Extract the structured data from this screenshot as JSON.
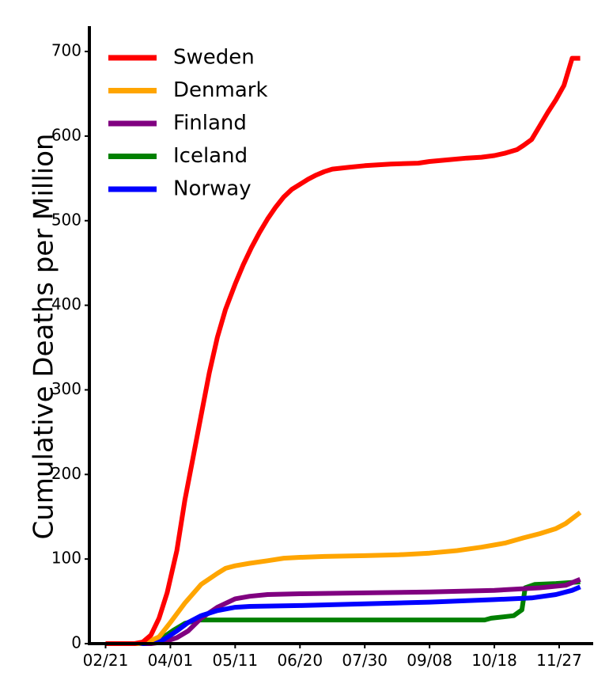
{
  "chart_data": {
    "type": "line",
    "title": "",
    "xlabel": "",
    "ylabel": "Cumulative Deaths per Million",
    "x_ticks": [
      "02/21",
      "04/01",
      "05/11",
      "06/20",
      "07/30",
      "09/08",
      "10/18",
      "11/27"
    ],
    "y_ticks": [
      0,
      100,
      200,
      300,
      400,
      500,
      600,
      700
    ],
    "xlim": [
      "2020-02-11",
      "2020-12-18"
    ],
    "ylim": [
      0,
      730
    ],
    "grid": false,
    "legend_position": "top-left",
    "series": [
      {
        "name": "Sweden",
        "color": "#ff0000",
        "points": [
          [
            "2020-02-21",
            0
          ],
          [
            "2020-03-10",
            0
          ],
          [
            "2020-03-15",
            2
          ],
          [
            "2020-03-20",
            10
          ],
          [
            "2020-03-25",
            30
          ],
          [
            "2020-03-30",
            60
          ],
          [
            "2020-04-05",
            110
          ],
          [
            "2020-04-10",
            170
          ],
          [
            "2020-04-15",
            220
          ],
          [
            "2020-04-20",
            270
          ],
          [
            "2020-04-25",
            320
          ],
          [
            "2020-04-30",
            362
          ],
          [
            "2020-05-05",
            395
          ],
          [
            "2020-05-11",
            425
          ],
          [
            "2020-05-16",
            448
          ],
          [
            "2020-05-21",
            468
          ],
          [
            "2020-05-26",
            486
          ],
          [
            "2020-05-31",
            502
          ],
          [
            "2020-06-05",
            516
          ],
          [
            "2020-06-10",
            528
          ],
          [
            "2020-06-15",
            537
          ],
          [
            "2020-06-20",
            543
          ],
          [
            "2020-06-25",
            549
          ],
          [
            "2020-06-30",
            554
          ],
          [
            "2020-07-05",
            558
          ],
          [
            "2020-07-10",
            561
          ],
          [
            "2020-07-20",
            563
          ],
          [
            "2020-07-30",
            565
          ],
          [
            "2020-08-15",
            567
          ],
          [
            "2020-09-01",
            568
          ],
          [
            "2020-09-08",
            570
          ],
          [
            "2020-09-20",
            572
          ],
          [
            "2020-10-01",
            574
          ],
          [
            "2020-10-10",
            575
          ],
          [
            "2020-10-18",
            577
          ],
          [
            "2020-10-25",
            580
          ],
          [
            "2020-11-01",
            584
          ],
          [
            "2020-11-05",
            589
          ],
          [
            "2020-11-10",
            596
          ],
          [
            "2020-11-15",
            612
          ],
          [
            "2020-11-20",
            628
          ],
          [
            "2020-11-25",
            643
          ],
          [
            "2020-11-30",
            660
          ],
          [
            "2020-12-05",
            692
          ],
          [
            "2020-12-10",
            692
          ]
        ]
      },
      {
        "name": "Denmark",
        "color": "#ffa500",
        "points": [
          [
            "2020-02-21",
            0
          ],
          [
            "2020-03-12",
            0
          ],
          [
            "2020-03-18",
            2
          ],
          [
            "2020-03-25",
            8
          ],
          [
            "2020-04-01",
            25
          ],
          [
            "2020-04-10",
            48
          ],
          [
            "2020-04-20",
            70
          ],
          [
            "2020-04-30",
            83
          ],
          [
            "2020-05-05",
            89
          ],
          [
            "2020-05-11",
            92
          ],
          [
            "2020-05-20",
            95
          ],
          [
            "2020-05-31",
            98
          ],
          [
            "2020-06-10",
            101
          ],
          [
            "2020-06-20",
            102
          ],
          [
            "2020-07-05",
            103
          ],
          [
            "2020-07-30",
            104
          ],
          [
            "2020-08-20",
            105
          ],
          [
            "2020-09-08",
            107
          ],
          [
            "2020-09-25",
            110
          ],
          [
            "2020-10-10",
            114
          ],
          [
            "2020-10-25",
            119
          ],
          [
            "2020-11-05",
            125
          ],
          [
            "2020-11-15",
            130
          ],
          [
            "2020-11-25",
            136
          ],
          [
            "2020-12-01",
            142
          ],
          [
            "2020-12-10",
            155
          ]
        ]
      },
      {
        "name": "Finland",
        "color": "#800080",
        "points": [
          [
            "2020-02-21",
            0
          ],
          [
            "2020-03-20",
            0
          ],
          [
            "2020-03-28",
            2
          ],
          [
            "2020-04-05",
            7
          ],
          [
            "2020-04-12",
            15
          ],
          [
            "2020-04-20",
            30
          ],
          [
            "2020-04-30",
            43
          ],
          [
            "2020-05-11",
            53
          ],
          [
            "2020-05-20",
            56
          ],
          [
            "2020-05-31",
            58
          ],
          [
            "2020-06-20",
            59
          ],
          [
            "2020-07-30",
            60
          ],
          [
            "2020-09-08",
            61
          ],
          [
            "2020-10-18",
            63
          ],
          [
            "2020-11-15",
            66
          ],
          [
            "2020-12-01",
            69
          ],
          [
            "2020-12-10",
            76
          ]
        ]
      },
      {
        "name": "Iceland",
        "color": "#008000",
        "points": [
          [
            "2020-02-21",
            0
          ],
          [
            "2020-03-18",
            0
          ],
          [
            "2020-03-22",
            3
          ],
          [
            "2020-03-28",
            8
          ],
          [
            "2020-04-03",
            16
          ],
          [
            "2020-04-10",
            24
          ],
          [
            "2020-04-18",
            28
          ],
          [
            "2020-04-25",
            28
          ],
          [
            "2020-06-20",
            28
          ],
          [
            "2020-09-08",
            28
          ],
          [
            "2020-10-12",
            28
          ],
          [
            "2020-10-16",
            30
          ],
          [
            "2020-10-30",
            33
          ],
          [
            "2020-11-04",
            40
          ],
          [
            "2020-11-06",
            66
          ],
          [
            "2020-11-12",
            70
          ],
          [
            "2020-11-25",
            71
          ],
          [
            "2020-12-10",
            73
          ]
        ]
      },
      {
        "name": "Norway",
        "color": "#0000ff",
        "points": [
          [
            "2020-02-21",
            0
          ],
          [
            "2020-03-15",
            0
          ],
          [
            "2020-03-22",
            2
          ],
          [
            "2020-03-28",
            5
          ],
          [
            "2020-04-05",
            15
          ],
          [
            "2020-04-12",
            25
          ],
          [
            "2020-04-20",
            33
          ],
          [
            "2020-04-30",
            39
          ],
          [
            "2020-05-11",
            43
          ],
          [
            "2020-05-20",
            44
          ],
          [
            "2020-06-20",
            45
          ],
          [
            "2020-07-30",
            47
          ],
          [
            "2020-09-08",
            49
          ],
          [
            "2020-10-18",
            52
          ],
          [
            "2020-11-10",
            54
          ],
          [
            "2020-11-25",
            58
          ],
          [
            "2020-12-05",
            63
          ],
          [
            "2020-12-10",
            67
          ]
        ]
      }
    ]
  }
}
